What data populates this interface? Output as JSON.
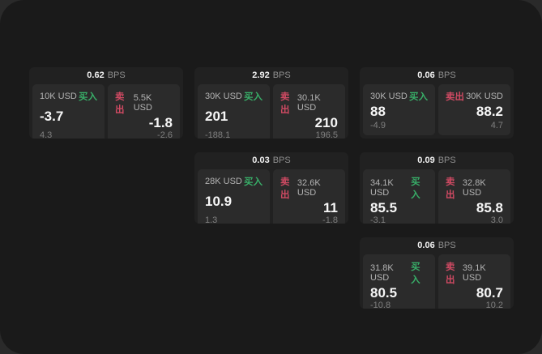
{
  "labels": {
    "bps_unit": "BPS",
    "buy": "买入",
    "sell": "卖出"
  },
  "colors": {
    "background": "#2a2a2a",
    "panel": "#1a1a1a",
    "card": "#212121",
    "tile": "#2b2b2b",
    "buy_green": "#38ae68",
    "sell_red": "#d04a63",
    "text_primary": "#f7f7f7",
    "text_secondary": "#b3b3b3",
    "text_muted": "#7f7f7f"
  },
  "cards": [
    {
      "bps": "0.62",
      "buy": {
        "size": "10K USD",
        "price": "-3.7",
        "delta": "4.3"
      },
      "sell": {
        "size": "5.5K USD",
        "price": "-1.8",
        "delta": "-2.6"
      }
    },
    {
      "bps": "2.92",
      "buy": {
        "size": "30K USD",
        "price": "201",
        "delta": "-188.1"
      },
      "sell": {
        "size": "30.1K USD",
        "price": "210",
        "delta": "196.5"
      }
    },
    {
      "bps": "0.06",
      "buy": {
        "size": "30K USD",
        "price": "88",
        "delta": "-4.9"
      },
      "sell": {
        "size": "30K USD",
        "price": "88.2",
        "delta": "4.7"
      }
    },
    {
      "bps": "0.03",
      "buy": {
        "size": "28K USD",
        "price": "10.9",
        "delta": "1.3"
      },
      "sell": {
        "size": "32.6K USD",
        "price": "11",
        "delta": "-1.8"
      }
    },
    {
      "bps": "0.09",
      "buy": {
        "size": "34.1K USD",
        "price": "85.5",
        "delta": "-3.1"
      },
      "sell": {
        "size": "32.8K USD",
        "price": "85.8",
        "delta": "3.0"
      }
    },
    {
      "bps": "0.06",
      "buy": {
        "size": "31.8K USD",
        "price": "80.5",
        "delta": "-10.8"
      },
      "sell": {
        "size": "39.1K USD",
        "price": "80.7",
        "delta": "10.2"
      }
    }
  ]
}
